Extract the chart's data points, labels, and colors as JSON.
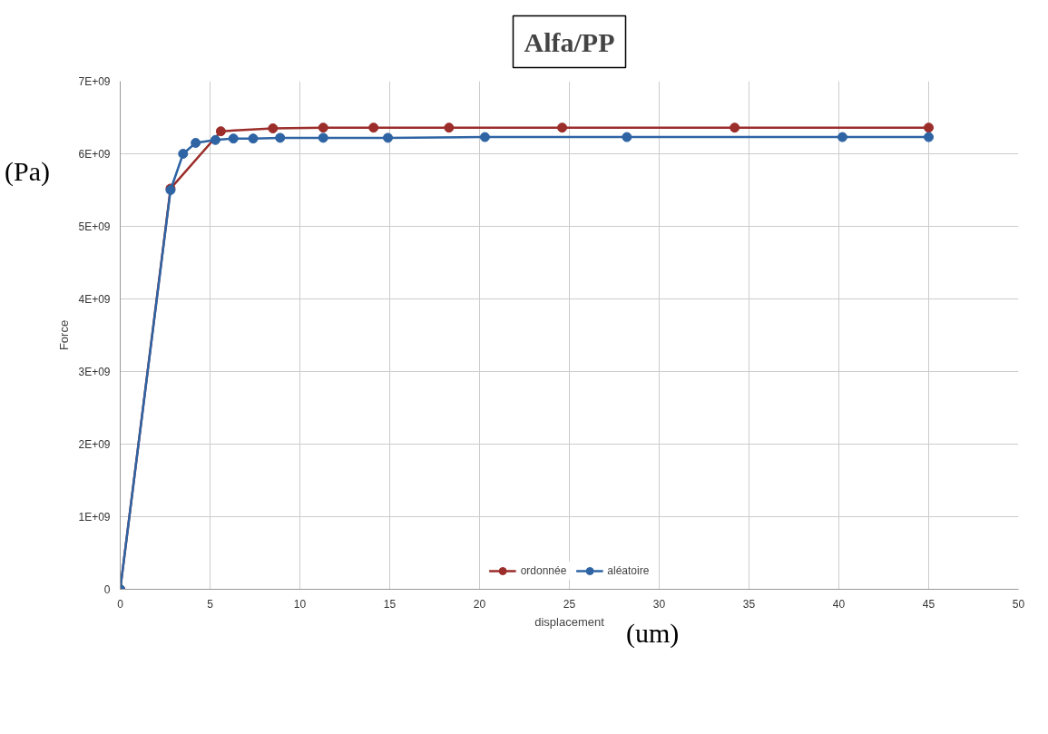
{
  "chart_data": {
    "type": "line",
    "title": "Alfa/PP",
    "xlabel": "displacement",
    "ylabel": "Force",
    "annotations": [
      "(Pa)",
      "(um)"
    ],
    "xlim": [
      0,
      50
    ],
    "xticks": [
      0,
      5,
      10,
      15,
      20,
      25,
      30,
      35,
      40,
      45,
      50
    ],
    "ylim": [
      0,
      7000000000.0
    ],
    "yticks": [
      {
        "value": 0,
        "label": "0"
      },
      {
        "value": 1000000000.0,
        "label": "1E+09"
      },
      {
        "value": 2000000000.0,
        "label": "2E+09"
      },
      {
        "value": 3000000000.0,
        "label": "3E+09"
      },
      {
        "value": 4000000000.0,
        "label": "4E+09"
      },
      {
        "value": 5000000000.0,
        "label": "5E+09"
      },
      {
        "value": 6000000000.0,
        "label": "6E+09"
      },
      {
        "value": 7000000000.0,
        "label": "7E+09"
      }
    ],
    "grid": true,
    "legend": "bottom",
    "marker": "circle",
    "line_style": "solid",
    "series": [
      {
        "name": "ordonnée",
        "color": "#9b2d2a",
        "x": [
          0,
          2.8,
          5.6,
          8.5,
          11.3,
          14.1,
          18.3,
          24.6,
          34.2,
          45
        ],
        "values": [
          0,
          5520000000.0,
          6310000000.0,
          6350000000.0,
          6360000000.0,
          6360000000.0,
          6360000000.0,
          6360000000.0,
          6360000000.0,
          6360000000.0
        ]
      },
      {
        "name": "aléatoire",
        "color": "#2e64a4",
        "x": [
          0,
          2.8,
          3.5,
          4.2,
          5.3,
          6.3,
          7.4,
          8.9,
          11.3,
          14.9,
          20.3,
          28.2,
          40.2,
          45
        ],
        "values": [
          0,
          5500000000.0,
          6000000000.0,
          6150000000.0,
          6190000000.0,
          6210000000.0,
          6210000000.0,
          6220000000.0,
          6220000000.0,
          6220000000.0,
          6230000000.0,
          6230000000.0,
          6230000000.0,
          6230000000.0
        ]
      }
    ]
  }
}
